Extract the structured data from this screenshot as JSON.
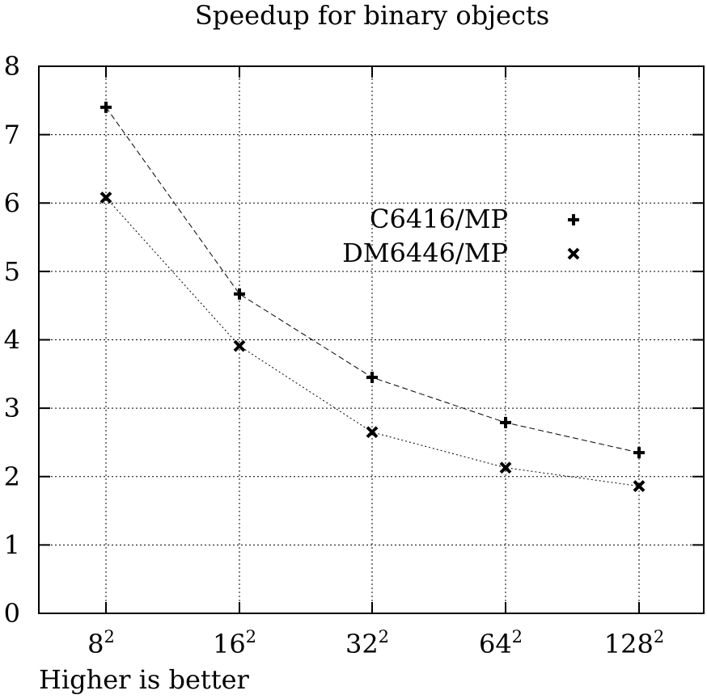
{
  "chart_data": {
    "type": "line",
    "title": "Speedup for binary objects",
    "xlabel": "Higher is better",
    "ylabel": "",
    "categories": [
      {
        "base": "8",
        "exp": "2"
      },
      {
        "base": "16",
        "exp": "2"
      },
      {
        "base": "32",
        "exp": "2"
      },
      {
        "base": "64",
        "exp": "2"
      },
      {
        "base": "128",
        "exp": "2"
      }
    ],
    "ylim": [
      0,
      8
    ],
    "yticks": [
      "0",
      "1",
      "2",
      "3",
      "4",
      "5",
      "6",
      "7",
      "8"
    ],
    "grid": true,
    "legend_position": "top-right",
    "series": [
      {
        "name": "C6416/MP",
        "marker": "plus",
        "line": "dashed",
        "values": [
          7.4,
          4.67,
          3.45,
          2.79,
          2.35
        ]
      },
      {
        "name": "DM6446/MP",
        "marker": "cross",
        "line": "dotted",
        "values": [
          6.08,
          3.91,
          2.65,
          2.13,
          1.86
        ]
      }
    ]
  }
}
